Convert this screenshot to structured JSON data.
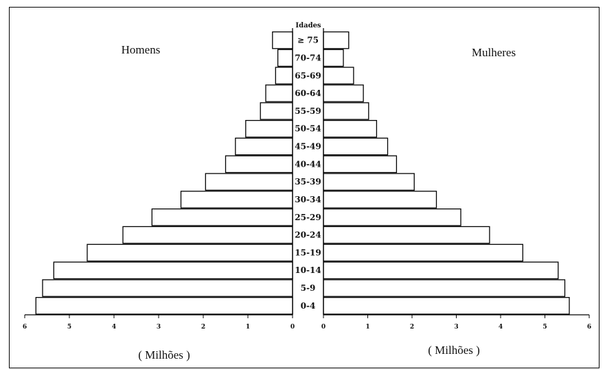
{
  "chart_data": {
    "type": "bar",
    "orientation": "population-pyramid",
    "age_axis_title": "Idades",
    "left_title": "Homens",
    "right_title": "Mulheres",
    "left_unit": "( Milhões )",
    "right_unit": "( Milhões )",
    "categories": [
      "0-4",
      "5-9",
      "10-14",
      "15-19",
      "20-24",
      "25-29",
      "30-34",
      "35-39",
      "40-44",
      "45-49",
      "50-54",
      "55-59",
      "60-64",
      "65-69",
      "70-74",
      "≥ 75"
    ],
    "series": [
      {
        "name": "Homens",
        "side": "left",
        "values": [
          5.75,
          5.6,
          5.35,
          4.6,
          3.8,
          3.15,
          2.5,
          1.95,
          1.5,
          1.28,
          1.05,
          0.72,
          0.6,
          0.38,
          0.33,
          0.45
        ]
      },
      {
        "name": "Mulheres",
        "side": "right",
        "values": [
          5.55,
          5.45,
          5.3,
          4.5,
          3.75,
          3.1,
          2.55,
          2.05,
          1.65,
          1.45,
          1.2,
          1.02,
          0.9,
          0.68,
          0.45,
          0.57
        ]
      }
    ],
    "xlim": [
      0,
      6
    ],
    "ticks": [
      "0",
      "1",
      "2",
      "3",
      "4",
      "5",
      "6"
    ],
    "grid": false,
    "colors": {
      "bar_fill": "#ffffff",
      "bar_stroke": "#000000",
      "frame": "#000000"
    }
  }
}
